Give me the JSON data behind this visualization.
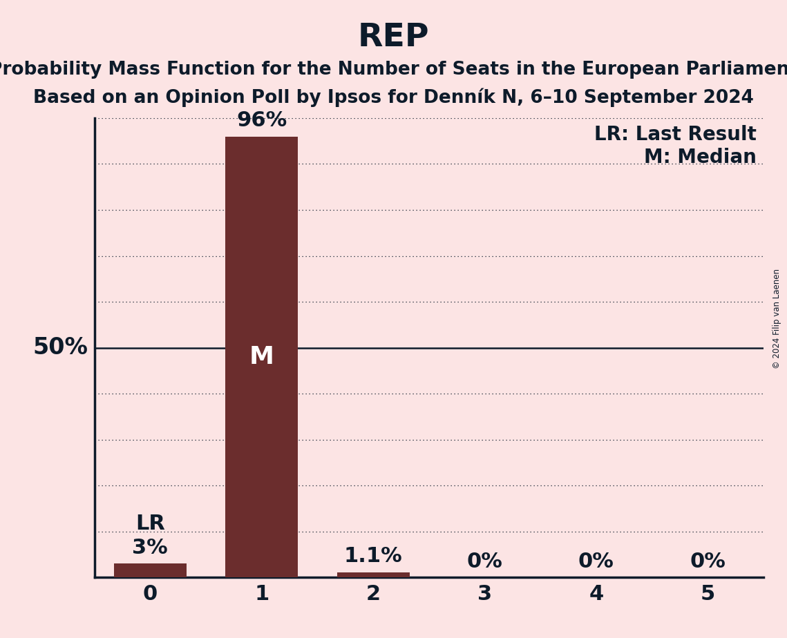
{
  "title": "REP",
  "subtitle1": "Probability Mass Function for the Number of Seats in the European Parliament",
  "subtitle2": "Based on an Opinion Poll by Ipsos for Denník N, 6–10 September 2024",
  "background_color": "#fce4e4",
  "bar_color": "#6b2d2d",
  "categories": [
    0,
    1,
    2,
    3,
    4,
    5
  ],
  "values": [
    0.03,
    0.96,
    0.011,
    0.0,
    0.0,
    0.0
  ],
  "bar_labels": [
    "3%",
    "96%",
    "1.1%",
    "0%",
    "0%",
    "0%"
  ],
  "median_bar": 1,
  "last_result_bar": 0,
  "ylabel_50": "50%",
  "legend_lr": "LR: Last Result",
  "legend_m": "M: Median",
  "copyright": "© 2024 Filip van Laenen",
  "ylim": [
    0,
    1.0
  ],
  "yticks": [
    0.1,
    0.2,
    0.3,
    0.4,
    0.5,
    0.6,
    0.7,
    0.8,
    0.9,
    1.0
  ],
  "title_fontsize": 34,
  "subtitle_fontsize": 19,
  "label_fontsize": 22,
  "tick_fontsize": 22,
  "bar_width": 0.65,
  "text_color": "#0d1b2a"
}
